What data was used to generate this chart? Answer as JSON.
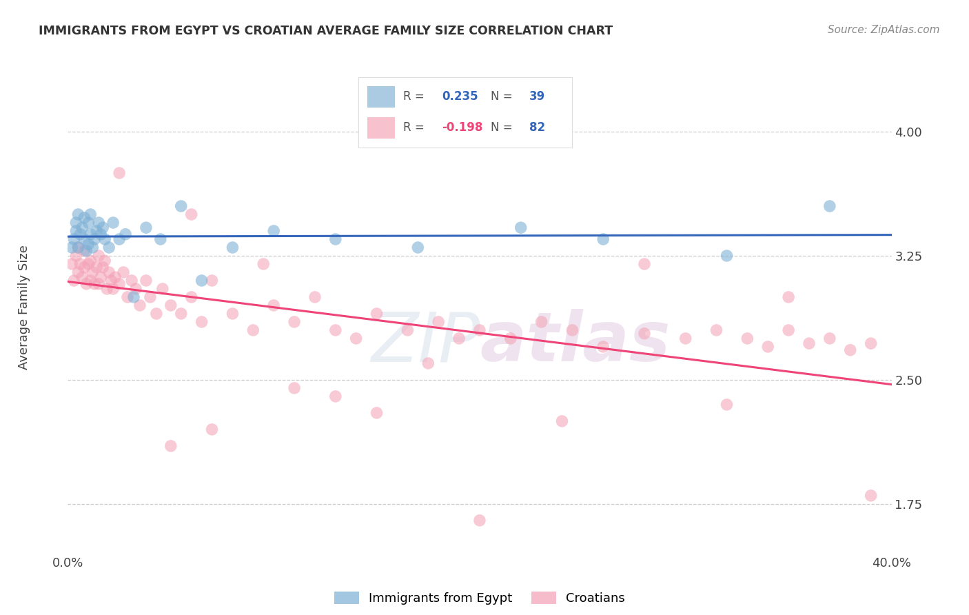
{
  "title": "IMMIGRANTS FROM EGYPT VS CROATIAN AVERAGE FAMILY SIZE CORRELATION CHART",
  "source": "Source: ZipAtlas.com",
  "ylabel": "Average Family Size",
  "xlim": [
    0.0,
    0.4
  ],
  "ylim": [
    1.45,
    4.35
  ],
  "yticks": [
    1.75,
    2.5,
    3.25,
    4.0
  ],
  "yticklabels": [
    "1.75",
    "2.50",
    "3.25",
    "4.00"
  ],
  "xticks": [
    0.0,
    0.4
  ],
  "xticklabels": [
    "0.0%",
    "40.0%"
  ],
  "legend_label1": "Immigrants from Egypt",
  "legend_label2": "Croatians",
  "R1": "0.235",
  "N1": "39",
  "R2": "-0.198",
  "N2": "82",
  "blue_color": "#7EB0D5",
  "pink_color": "#F4A0B5",
  "line_blue": "#3366BB",
  "line_pink": "#EE4477",
  "background_color": "#FFFFFF",
  "blue_x": [
    0.002,
    0.003,
    0.004,
    0.004,
    0.005,
    0.005,
    0.006,
    0.007,
    0.008,
    0.008,
    0.009,
    0.01,
    0.01,
    0.011,
    0.011,
    0.012,
    0.013,
    0.014,
    0.015,
    0.016,
    0.017,
    0.018,
    0.02,
    0.022,
    0.025,
    0.028,
    0.032,
    0.038,
    0.045,
    0.055,
    0.065,
    0.08,
    0.1,
    0.13,
    0.17,
    0.22,
    0.26,
    0.32,
    0.37
  ],
  "blue_y": [
    3.3,
    3.35,
    3.4,
    3.45,
    3.3,
    3.5,
    3.38,
    3.42,
    3.35,
    3.48,
    3.28,
    3.32,
    3.45,
    3.38,
    3.5,
    3.3,
    3.35,
    3.4,
    3.45,
    3.38,
    3.42,
    3.35,
    3.3,
    3.45,
    3.35,
    3.38,
    3.0,
    3.42,
    3.35,
    3.55,
    3.1,
    3.3,
    3.4,
    3.35,
    3.3,
    3.42,
    3.35,
    3.25,
    3.55
  ],
  "pink_x": [
    0.002,
    0.003,
    0.004,
    0.005,
    0.005,
    0.006,
    0.007,
    0.008,
    0.008,
    0.009,
    0.01,
    0.011,
    0.011,
    0.012,
    0.013,
    0.014,
    0.015,
    0.015,
    0.016,
    0.017,
    0.018,
    0.019,
    0.02,
    0.021,
    0.022,
    0.023,
    0.025,
    0.027,
    0.029,
    0.031,
    0.033,
    0.035,
    0.038,
    0.04,
    0.043,
    0.046,
    0.05,
    0.055,
    0.06,
    0.065,
    0.07,
    0.08,
    0.09,
    0.1,
    0.11,
    0.12,
    0.13,
    0.14,
    0.15,
    0.165,
    0.18,
    0.19,
    0.2,
    0.215,
    0.23,
    0.245,
    0.26,
    0.28,
    0.3,
    0.315,
    0.33,
    0.34,
    0.35,
    0.36,
    0.37,
    0.38,
    0.39,
    0.025,
    0.06,
    0.095,
    0.13,
    0.175,
    0.24,
    0.05,
    0.15,
    0.28,
    0.35,
    0.07,
    0.11,
    0.2,
    0.32,
    0.39
  ],
  "pink_y": [
    3.2,
    3.1,
    3.25,
    3.15,
    3.3,
    3.2,
    3.12,
    3.18,
    3.28,
    3.08,
    3.2,
    3.1,
    3.22,
    3.15,
    3.08,
    3.18,
    3.25,
    3.08,
    3.12,
    3.18,
    3.22,
    3.05,
    3.15,
    3.1,
    3.05,
    3.12,
    3.08,
    3.15,
    3.0,
    3.1,
    3.05,
    2.95,
    3.1,
    3.0,
    2.9,
    3.05,
    2.95,
    2.9,
    3.0,
    2.85,
    3.1,
    2.9,
    2.8,
    2.95,
    2.85,
    3.0,
    2.8,
    2.75,
    2.9,
    2.8,
    2.85,
    2.75,
    2.8,
    2.75,
    2.85,
    2.8,
    2.7,
    2.78,
    2.75,
    2.8,
    2.75,
    2.7,
    2.8,
    2.72,
    2.75,
    2.68,
    2.72,
    3.75,
    3.5,
    3.2,
    2.4,
    2.6,
    2.25,
    2.1,
    2.3,
    3.2,
    3.0,
    2.2,
    2.45,
    1.65,
    2.35,
    1.8
  ]
}
